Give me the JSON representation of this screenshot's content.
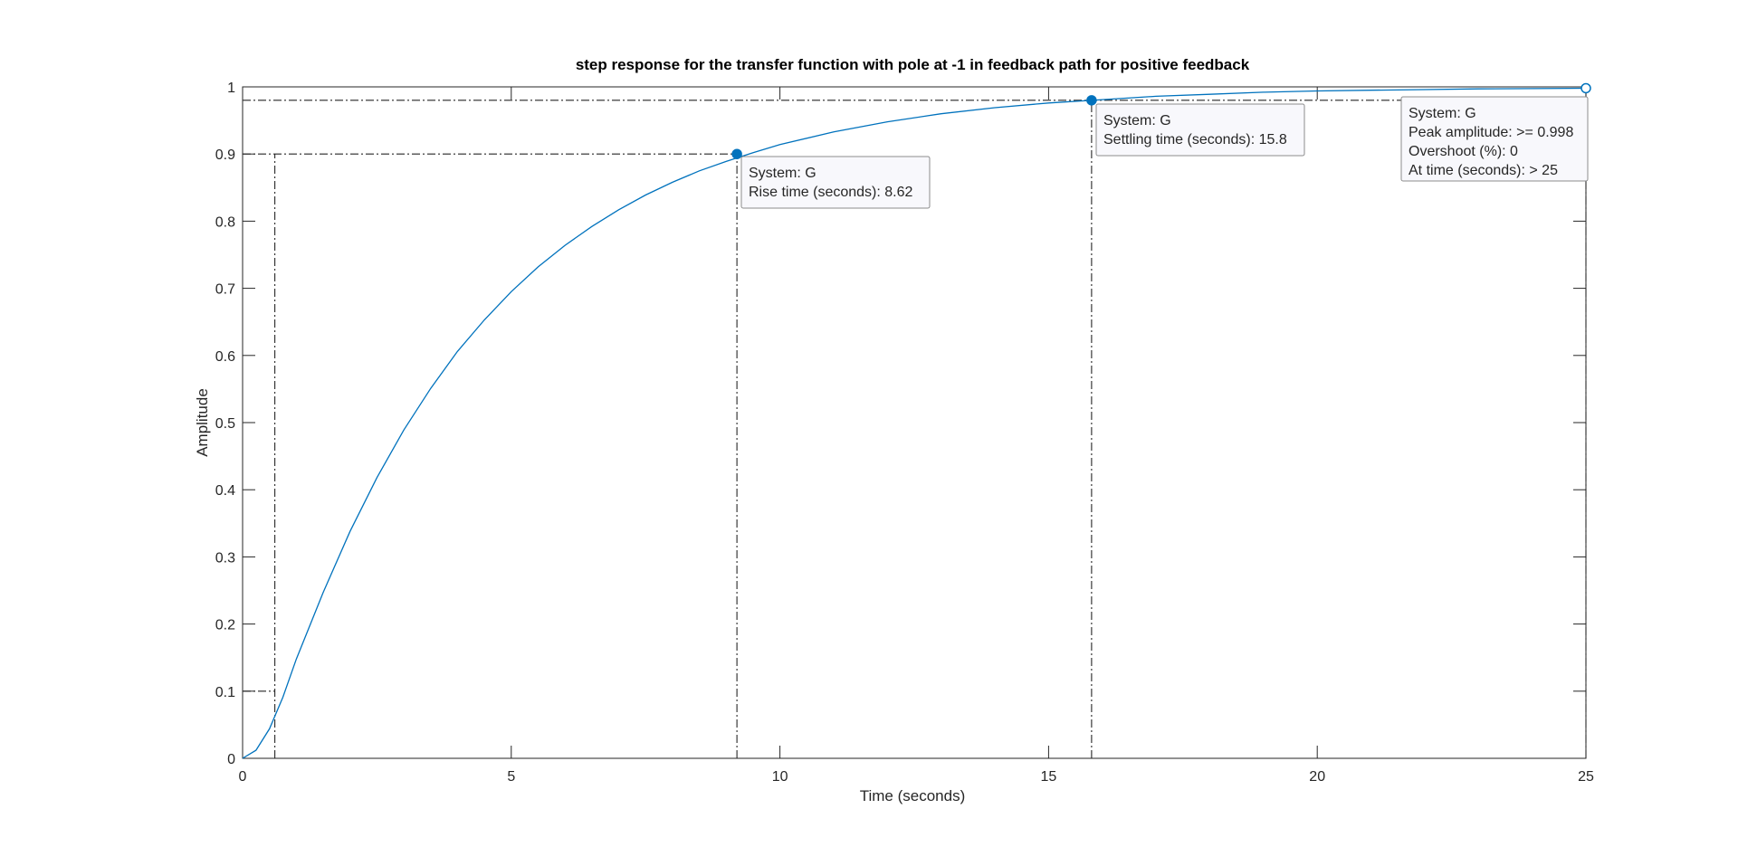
{
  "chart_data": {
    "type": "line",
    "title": "step response for the transfer function with pole at -1 in feedback path for positive feedback",
    "xlabel": "Time (seconds)",
    "ylabel": "Amplitude",
    "xlim": [
      0,
      25
    ],
    "ylim": [
      0,
      1
    ],
    "xticks": [
      0,
      5,
      10,
      15,
      20,
      25
    ],
    "xtick_labels": [
      "0",
      "5",
      "10",
      "15",
      "20",
      "25"
    ],
    "yticks": [
      0,
      0.1,
      0.2,
      0.3,
      0.4,
      0.5,
      0.6,
      0.7,
      0.8,
      0.9,
      1
    ],
    "ytick_labels": [
      "0",
      "0.1",
      "0.2",
      "0.3",
      "0.4",
      "0.5",
      "0.6",
      "0.7",
      "0.8",
      "0.9",
      "1"
    ],
    "grid": false,
    "line_color": "#0072BD",
    "series": [
      {
        "x": [
          0,
          0.25,
          0.5,
          0.75,
          1,
          1.5,
          2,
          2.5,
          3,
          3.5,
          4,
          4.5,
          5,
          5.5,
          6,
          6.5,
          7,
          7.5,
          8,
          8.5,
          9,
          9.5,
          10,
          11,
          12,
          13,
          14,
          15,
          16,
          17,
          18,
          19,
          20,
          21,
          22,
          23,
          24,
          25
        ],
        "values": [
          0,
          0.012,
          0.044,
          0.091,
          0.148,
          0.247,
          0.338,
          0.418,
          0.489,
          0.551,
          0.606,
          0.653,
          0.695,
          0.732,
          0.764,
          0.792,
          0.817,
          0.839,
          0.858,
          0.875,
          0.889,
          0.902,
          0.914,
          0.933,
          0.948,
          0.96,
          0.969,
          0.976,
          0.981,
          0.986,
          0.989,
          0.992,
          0.994,
          0.995,
          0.996,
          0.997,
          0.9975,
          0.998
        ]
      }
    ],
    "reference_lines": [
      {
        "axis": "y",
        "value": 0.1,
        "x_end": 0.6
      },
      {
        "axis": "y",
        "value": 0.9,
        "x_end": 9.2
      },
      {
        "axis": "y",
        "value": 0.98,
        "x_end": 25
      },
      {
        "axis": "y",
        "value": 1.0,
        "x_end": 25
      },
      {
        "axis": "x",
        "value": 0.6,
        "y_end": 0.9
      },
      {
        "axis": "x",
        "value": 9.2,
        "y_end": 0.9
      },
      {
        "axis": "x",
        "value": 15.8,
        "y_end": 0.98
      },
      {
        "axis": "x",
        "value": 25,
        "y_end": 1.0
      }
    ],
    "markers": [
      {
        "x": 9.2,
        "y": 0.9,
        "filled": true
      },
      {
        "x": 15.8,
        "y": 0.98,
        "filled": true
      },
      {
        "x": 25,
        "y": 0.998,
        "filled": false
      }
    ],
    "datatips": [
      {
        "lines": [
          "System: G",
          "Rise time (seconds): 8.62"
        ],
        "x": 9.2,
        "y": 0.9
      },
      {
        "lines": [
          "System: G",
          "Settling time (seconds): 15.8"
        ],
        "x": 15.8,
        "y": 0.98
      },
      {
        "lines": [
          "System: G",
          "Peak amplitude: >= 0.998",
          "Overshoot (%): 0",
          "At time (seconds): > 25"
        ],
        "x": 25,
        "y": 0.998
      }
    ]
  }
}
